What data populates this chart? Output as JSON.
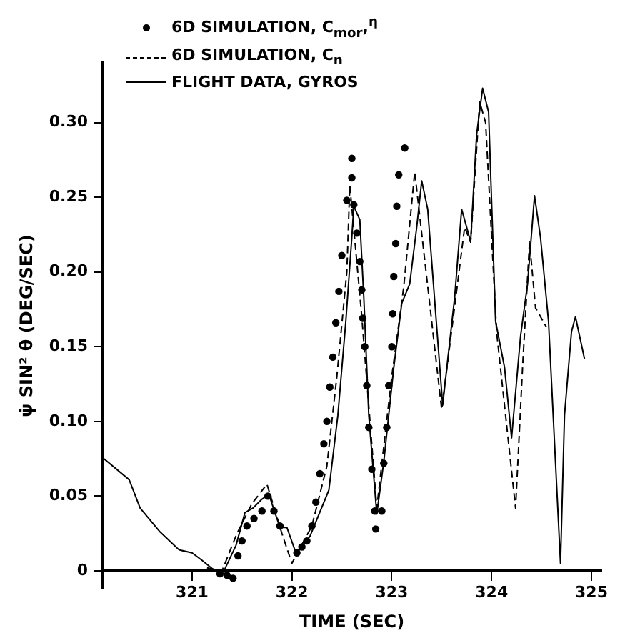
{
  "chart_data": {
    "type": "line",
    "xlabel": "TIME (SEC)",
    "ylabel": "ψ̇ SIN² θ (DEG/SEC)",
    "xlim": [
      320.1,
      325.1
    ],
    "xticks": [
      321,
      322,
      323,
      324,
      325
    ],
    "ylim": [
      -0.012,
      0.34
    ],
    "yticks": [
      0,
      0.05,
      {
        "value": 0.1,
        "label": "0.10"
      },
      0.15,
      {
        "value": 0.2,
        "label": "0.20"
      },
      0.25,
      {
        "value": 0.3,
        "label": "0.30"
      }
    ],
    "grid": false,
    "legend": "top",
    "series": [
      {
        "name": "6D SIMULATION, C$_{mor}$,$^{η}$",
        "type": "scatter",
        "marker": "circle",
        "color": "#000000",
        "x": [
          321.28,
          321.35,
          321.41,
          321.46,
          321.5,
          321.55,
          321.62,
          321.7,
          321.76,
          321.82,
          321.88,
          322.05,
          322.1,
          322.15,
          322.2,
          322.24,
          322.28,
          322.32,
          322.35,
          322.38,
          322.41,
          322.44,
          322.47,
          322.5,
          322.55,
          322.6,
          322.6,
          322.62,
          322.65,
          322.68,
          322.7,
          322.71,
          322.73,
          322.75,
          322.77,
          322.8,
          322.83,
          322.84,
          322.9,
          322.92,
          322.95,
          322.97,
          323.0,
          323.01,
          323.02,
          323.04,
          323.05,
          323.07,
          323.13
        ],
        "values": [
          -0.002,
          -0.003,
          -0.005,
          0.01,
          0.02,
          0.03,
          0.035,
          0.04,
          0.05,
          0.04,
          0.03,
          0.012,
          0.016,
          0.02,
          0.03,
          0.046,
          0.065,
          0.085,
          0.1,
          0.123,
          0.143,
          0.166,
          0.187,
          0.211,
          0.248,
          0.263,
          0.276,
          0.245,
          0.226,
          0.207,
          0.188,
          0.169,
          0.15,
          0.124,
          0.096,
          0.068,
          0.04,
          0.028,
          0.04,
          0.072,
          0.096,
          0.124,
          0.15,
          0.172,
          0.197,
          0.219,
          0.244,
          0.265,
          0.283
        ]
      },
      {
        "name": "6D SIMULATION, C$_{n}$",
        "type": "line",
        "line_style": "dashed",
        "color": "#000000",
        "x": [
          321.15,
          321.3,
          321.45,
          321.6,
          321.75,
          321.9,
          322.0,
          322.2,
          322.35,
          322.45,
          322.55,
          322.58,
          322.7,
          322.85,
          323.0,
          323.12,
          323.23,
          323.5,
          323.73,
          323.79,
          323.88,
          323.94,
          324.05,
          324.24,
          324.31,
          324.38,
          324.44,
          324.55
        ],
        "values": [
          0.002,
          0.0,
          0.025,
          0.045,
          0.058,
          0.025,
          0.005,
          0.03,
          0.07,
          0.13,
          0.2,
          0.258,
          0.17,
          0.042,
          0.13,
          0.19,
          0.267,
          0.108,
          0.23,
          0.22,
          0.314,
          0.3,
          0.16,
          0.042,
          0.136,
          0.22,
          0.176,
          0.163
        ]
      },
      {
        "name": "FLIGHT DATA, GYROS",
        "type": "line",
        "line_style": "solid",
        "color": "#000000",
        "x": [
          320.1,
          320.37,
          320.48,
          320.68,
          320.87,
          321.0,
          321.1,
          321.21,
          321.32,
          321.44,
          321.53,
          321.61,
          321.7,
          321.77,
          321.88,
          321.95,
          322.04,
          322.18,
          322.37,
          322.46,
          322.54,
          322.6,
          322.62,
          322.68,
          322.72,
          322.77,
          322.85,
          322.92,
          323.02,
          323.1,
          323.18,
          323.25,
          323.3,
          323.36,
          323.51,
          323.63,
          323.7,
          323.75,
          323.79,
          323.85,
          323.91,
          323.97,
          324.04,
          324.13,
          324.2,
          324.29,
          324.36,
          324.43,
          324.49,
          324.57,
          324.69,
          324.73,
          324.8,
          324.84,
          324.93
        ],
        "values": [
          0.076,
          0.061,
          0.042,
          0.026,
          0.014,
          0.012,
          0.007,
          0.001,
          0.0,
          0.017,
          0.039,
          0.042,
          0.048,
          0.051,
          0.029,
          0.029,
          0.012,
          0.023,
          0.054,
          0.104,
          0.167,
          0.223,
          0.244,
          0.235,
          0.183,
          0.104,
          0.038,
          0.073,
          0.136,
          0.179,
          0.192,
          0.23,
          0.261,
          0.242,
          0.111,
          0.183,
          0.242,
          0.23,
          0.22,
          0.292,
          0.323,
          0.307,
          0.167,
          0.136,
          0.089,
          0.157,
          0.192,
          0.251,
          0.223,
          0.167,
          0.005,
          0.104,
          0.16,
          0.17,
          0.142
        ]
      }
    ]
  }
}
